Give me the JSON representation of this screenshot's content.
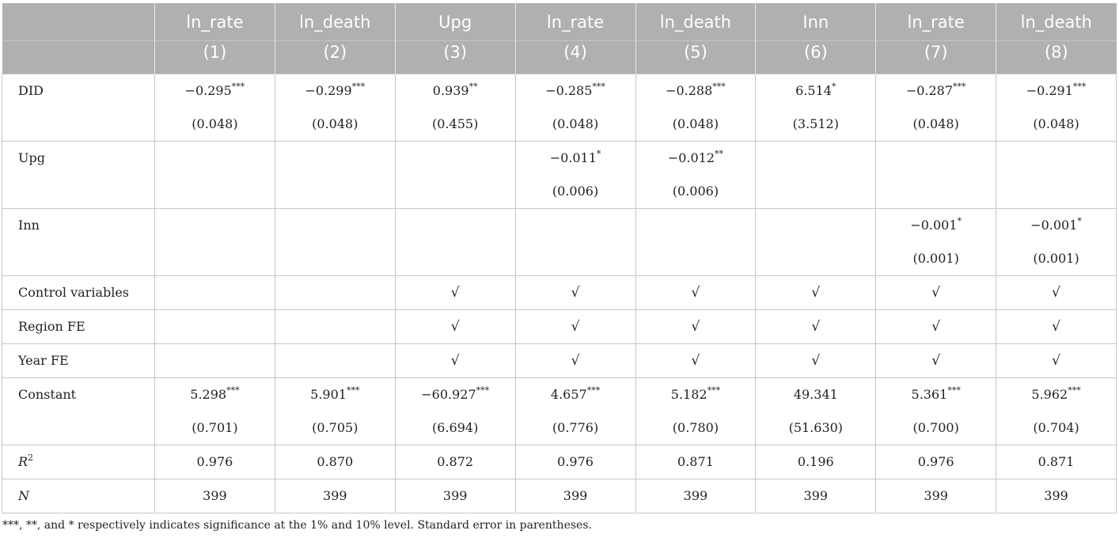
{
  "header": {
    "columns": [
      "ln_rate",
      "ln_death",
      "Upg",
      "ln_rate",
      "ln_death",
      "Inn",
      "ln_rate",
      "ln_death"
    ],
    "numbers": [
      "(1)",
      "(2)",
      "(3)",
      "(4)",
      "(5)",
      "(6)",
      "(7)",
      "(8)"
    ]
  },
  "rows": {
    "did": {
      "label": "DID",
      "coef": [
        "−0.295",
        "−0.299",
        "0.939",
        "−0.285",
        "−0.288",
        "6.514",
        "−0.287",
        "−0.291"
      ],
      "stars": [
        "***",
        "***",
        "**",
        "***",
        "***",
        "*",
        "***",
        "***"
      ],
      "se": [
        "(0.048)",
        "(0.048)",
        "(0.455)",
        "(0.048)",
        "(0.048)",
        "(3.512)",
        "(0.048)",
        "(0.048)"
      ]
    },
    "upg": {
      "label": "Upg",
      "coef": [
        "",
        "",
        "",
        "−0.011",
        "−0.012",
        "",
        "",
        ""
      ],
      "stars": [
        "",
        "",
        "",
        "*",
        "**",
        "",
        "",
        ""
      ],
      "se": [
        "",
        "",
        "",
        "(0.006)",
        "(0.006)",
        "",
        "",
        ""
      ]
    },
    "inn": {
      "label": "Inn",
      "coef": [
        "",
        "",
        "",
        "",
        "",
        "",
        "−0.001",
        "−0.001"
      ],
      "stars": [
        "",
        "",
        "",
        "",
        "",
        "",
        "*",
        "*"
      ],
      "se": [
        "",
        "",
        "",
        "",
        "",
        "",
        "(0.001)",
        "(0.001)"
      ]
    },
    "control": {
      "label": "Control variables",
      "marks": [
        "",
        "",
        "√",
        "√",
        "√",
        "√",
        "√",
        "√"
      ]
    },
    "region": {
      "label": "Region FE",
      "marks": [
        "",
        "",
        "√",
        "√",
        "√",
        "√",
        "√",
        "√"
      ]
    },
    "year": {
      "label": "Year FE",
      "marks": [
        "",
        "",
        "√",
        "√",
        "√",
        "√",
        "√",
        "√"
      ]
    },
    "constant": {
      "label": "Constant",
      "coef": [
        "5.298",
        "5.901",
        "−60.927",
        "4.657",
        "5.182",
        "49.341",
        "5.361",
        "5.962"
      ],
      "stars": [
        "***",
        "***",
        "***",
        "***",
        "***",
        "",
        "***",
        "***"
      ],
      "se": [
        "(0.701)",
        "(0.705)",
        "(6.694)",
        "(0.776)",
        "(0.780)",
        "(51.630)",
        "(0.700)",
        "(0.704)"
      ]
    },
    "r2": {
      "label_base": "R",
      "label_sup": "2",
      "values": [
        "0.976",
        "0.870",
        "0.872",
        "0.976",
        "0.871",
        "0.196",
        "0.976",
        "0.871"
      ]
    },
    "n": {
      "label": "N",
      "values": [
        "399",
        "399",
        "399",
        "399",
        "399",
        "399",
        "399",
        "399"
      ]
    }
  },
  "note": "***, **, and * respectively indicates significance at the 1% and 10% level. Standard error in parentheses."
}
